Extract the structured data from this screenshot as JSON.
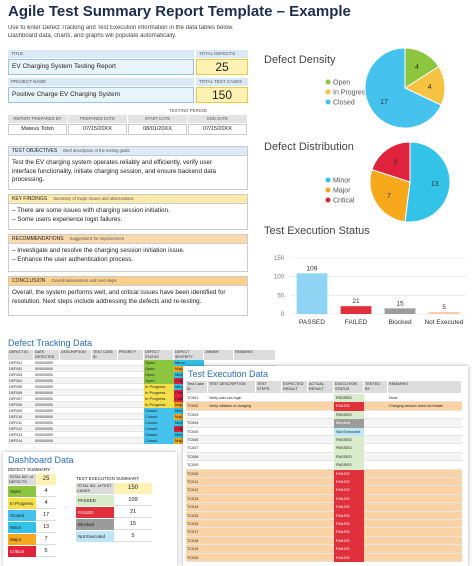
{
  "header": {
    "title": "Agile Test Summary Report Template – Example",
    "instructions": [
      "Use to enter Defect Tracking and Test Execution information in the data tables below.",
      "Dashboard data, charts, and graphs will populate automatically."
    ]
  },
  "summary": {
    "title_label": "TITLE",
    "title": "EV Charging System Testing Report",
    "total_defects_label": "TOTAL DEFECTS",
    "total_defects": 25,
    "project_label": "PROJECT NAME",
    "project": "Positive Charge EV Charging System",
    "total_cases_label": "TOTAL TEST CASES",
    "total_cases": 150,
    "period_label": "TESTING PERIOD",
    "columns": [
      "REPORT PREPARED BY",
      "PREPARED DATE",
      "START DATE",
      "END DATE"
    ],
    "values": [
      "Mateus Tobin",
      "07/15/20XX",
      "08/01/20XX",
      "07/15/20XX"
    ]
  },
  "sections": [
    {
      "label": "TEST OBJECTIVES",
      "hint": "Brief description of the testing goals",
      "color": "#dcebf7",
      "lines": [
        "Test the EV charging system operates reliably and efficiently, verify user",
        "interface functionality, initiate charging session, and ensure backend data",
        "processing."
      ]
    },
    {
      "label": "KEY FINDINGS",
      "hint": "Summary of major issues and observations",
      "color": "#fde9a9",
      "lines": [
        "– There are some issues with charging session initiation.",
        "– Some users experience login failures."
      ]
    },
    {
      "label": "RECOMMENDATIONS",
      "hint": "Suggestions for improvement",
      "color": "#fcd9ad",
      "lines": [
        "– Investigate and resolve the charging session initiation issue.",
        "– Enhance the user authentication process."
      ]
    },
    {
      "label": "CONCLUSION",
      "hint": "Overall assessment and next steps",
      "color": "#fcd08a",
      "lines": [
        "Overall, the system performs well, and critical issues have been identified for",
        "resolution. Next steps include addressing the defects and re-testing."
      ]
    }
  ],
  "charts": [
    {
      "type": "pie",
      "title": "Defect Density",
      "categories": [
        "Open",
        "In Progress",
        "Closed"
      ],
      "values": [
        4,
        4,
        17
      ],
      "colors": [
        "#8cc63f",
        "#f5c242",
        "#45c3ee"
      ]
    },
    {
      "type": "pie",
      "title": "Defect Distribution",
      "categories": [
        "Minor",
        "Major",
        "Critical"
      ],
      "values": [
        13,
        7,
        5
      ],
      "colors": [
        "#33c2e8",
        "#f7a81b",
        "#e1223d"
      ]
    },
    {
      "type": "bar",
      "title": "Test Execution Status",
      "categories": [
        "PASSED",
        "FAILED",
        "Blocked",
        "Not Executed"
      ],
      "values": [
        109,
        21,
        15,
        5
      ],
      "colors": [
        "#8fd4f2",
        "#e0303c",
        "#9b9b9b",
        "#f8c6a0"
      ],
      "ylim": [
        0,
        150
      ],
      "yticks": [
        0,
        50,
        100,
        150
      ],
      "grid": true
    }
  ],
  "status_colors": {
    "Open": "#8cc63f",
    "In Progress": "#f5e04a",
    "Closed": "#45c3ee",
    "Minor": "#33c2e8",
    "Major": "#f7a81b",
    "Critical": "#e1223d",
    "PASSED": "#d8eccc",
    "FAILED": "#e0303c",
    "Blocked": "#9b9b9b",
    "Not Executed": "#bfe6f7"
  },
  "defect_tracking": {
    "title": "Defect Tracking Data",
    "columns": [
      "DEFECT ID",
      "DATE DETECTED",
      "DESCRIPTION",
      "TEST CASE ID",
      "PRIORITY",
      "DEFECT STATUS",
      "DEFECT SEVERITY",
      "OWNER",
      "REMARKS"
    ],
    "rows": [
      {
        "id": "DEF001",
        "date": "00/00/0000",
        "status": "Open",
        "severity": "Minor"
      },
      {
        "id": "DEF002",
        "date": "00/00/0000",
        "status": "Open",
        "severity": "Major"
      },
      {
        "id": "DEF003",
        "date": "00/00/0000",
        "status": "Open",
        "severity": "Minor"
      },
      {
        "id": "DEF004",
        "date": "00/00/0000",
        "status": "Open",
        "severity": "Critical"
      },
      {
        "id": "DEF005",
        "date": "00/00/0000",
        "status": "In Progress",
        "severity": "Minor"
      },
      {
        "id": "DEF006",
        "date": "00/00/0000",
        "status": "In Progress",
        "severity": "Critical"
      },
      {
        "id": "DEF007",
        "date": "00/00/0000",
        "status": "In Progress",
        "severity": "Critical"
      },
      {
        "id": "DEF008",
        "date": "00/00/0000",
        "status": "In Progress",
        "severity": "Major"
      },
      {
        "id": "DEF009",
        "date": "00/00/0000",
        "status": "Closed",
        "severity": "Minor"
      },
      {
        "id": "DEF010",
        "date": "00/00/0000",
        "status": "Closed",
        "severity": "Major"
      },
      {
        "id": "DEF011",
        "date": "00/00/0000",
        "status": "Closed",
        "severity": "Minor"
      },
      {
        "id": "DEF012",
        "date": "00/00/0000",
        "status": "Closed",
        "severity": "Critical"
      },
      {
        "id": "DEF013",
        "date": "00/00/0000",
        "status": "Closed",
        "severity": "Minor"
      },
      {
        "id": "DEF014",
        "date": "00/00/0000",
        "status": "Closed",
        "severity": "Major"
      }
    ]
  },
  "test_execution": {
    "title": "Test Execution Data",
    "columns": [
      "Test Case ID",
      "TEST DESCRIPTION",
      "TEST STEPS",
      "EXPECTED RESULT",
      "ACTUAL RESULT",
      "EXECUTION STATUS",
      "TESTED BY",
      "REMARKS"
    ],
    "rows": [
      {
        "id": "TC001",
        "description": "Verify user can login",
        "status": "PASSED",
        "remarks": "None"
      },
      {
        "id": "TC002",
        "description": "Verify initiation of charging",
        "status": "FAILED",
        "remarks": "Charging session does not initiate"
      },
      {
        "id": "TC003",
        "status": "PASSED"
      },
      {
        "id": "TC004",
        "status": "Blocked"
      },
      {
        "id": "TC005",
        "status": "Not Executed"
      },
      {
        "id": "TC006",
        "status": "PASSED"
      },
      {
        "id": "TC007",
        "status": "PASSED"
      },
      {
        "id": "TC008",
        "status": "PASSED"
      },
      {
        "id": "TC009",
        "status": "PASSED"
      },
      {
        "id": "TC010",
        "status": "FAILED"
      },
      {
        "id": "TC011",
        "status": "FAILED"
      },
      {
        "id": "TC012",
        "status": "FAILED"
      },
      {
        "id": "TC013",
        "status": "FAILED"
      },
      {
        "id": "TC014",
        "status": "FAILED"
      },
      {
        "id": "TC015",
        "status": "FAILED"
      },
      {
        "id": "TC016",
        "status": "FAILED"
      },
      {
        "id": "TC017",
        "status": "FAILED"
      },
      {
        "id": "TC018",
        "status": "FAILED"
      },
      {
        "id": "TC019",
        "status": "FAILED"
      },
      {
        "id": "TC020",
        "status": "FAILED"
      }
    ]
  },
  "dashboard": {
    "title": "Dashboard Data",
    "defect_summary": {
      "title": "DEFECT SUMMARY",
      "total_label": "TOTAL NO. of DEFECTS",
      "total": 25,
      "rows": [
        {
          "label": "Open",
          "value": 4
        },
        {
          "label": "In Progress",
          "value": 4
        },
        {
          "label": "Closed",
          "value": 17
        },
        {
          "label": "Minor",
          "value": 13
        },
        {
          "label": "Major",
          "value": 7
        },
        {
          "label": "Critical",
          "value": 5
        }
      ]
    },
    "exec_summary": {
      "title": "TEST EXECUTION SUMMARY",
      "total_label": "TOTAL NO. of TEST CASES",
      "total": 150,
      "rows": [
        {
          "label": "PASSED",
          "value": 109
        },
        {
          "label": "FAILED",
          "value": 21
        },
        {
          "label": "Blocked",
          "value": 15
        },
        {
          "label": "Not Executed",
          "value": 5
        }
      ]
    }
  }
}
